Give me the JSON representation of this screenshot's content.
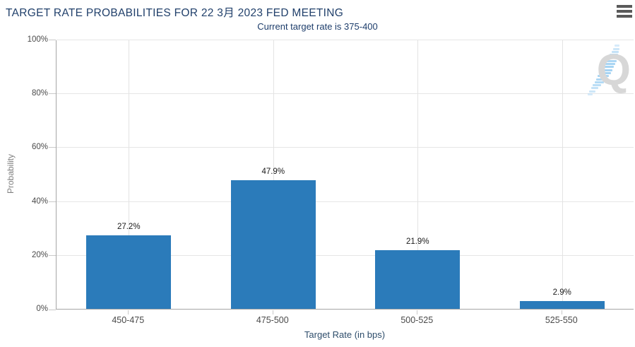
{
  "header": {
    "title": "TARGET RATE PROBABILITIES FOR 22 3月 2023 FED MEETING",
    "subtitle": "Current target rate is 375-400"
  },
  "watermark": {
    "letter": "Q"
  },
  "colors": {
    "title_navy": "#21406b",
    "bar_blue": "#2b7bba",
    "grid_gray": "#e6e6e6",
    "axis_gray": "#a6a6a6",
    "watermark_gray": "#d7d7d7",
    "watermark_blue": "#a5d3f3",
    "menu_icon_gray": "#5a5a5a"
  },
  "chart_data": {
    "type": "bar",
    "title": "TARGET RATE PROBABILITIES FOR 22 3月 2023 FED MEETING",
    "subtitle": "Current target rate is 375-400",
    "categories": [
      "450-475",
      "475-500",
      "500-525",
      "525-550"
    ],
    "values": [
      27.2,
      47.9,
      21.9,
      2.9
    ],
    "value_labels": [
      "27.2%",
      "47.9%",
      "21.9%",
      "2.9%"
    ],
    "xlabel": "Target Rate (in bps)",
    "ylabel": "Probability",
    "ylim": [
      0,
      100
    ],
    "yticks": [
      0,
      20,
      40,
      60,
      80,
      100
    ],
    "ytick_labels": [
      "0%",
      "20%",
      "40%",
      "60%",
      "80%",
      "100%"
    ],
    "grid": true,
    "legend": "none",
    "bar_color": "#2b7bba"
  }
}
